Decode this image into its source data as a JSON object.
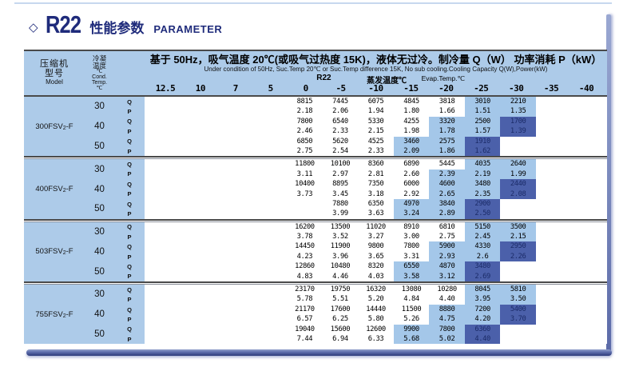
{
  "title": {
    "diamond": "◇",
    "refrigerant": "R22",
    "cn": "性能参数",
    "en": "PARAMETER"
  },
  "colors": {
    "light_blue": "#adcbe9",
    "highlight_light": "#a4c7e9",
    "highlight_dark": "#4b60aa",
    "title_navy": "#1f2b7b",
    "line": "#4a4a4a"
  },
  "table": {
    "header": {
      "model_cn1": "压缩机",
      "model_cn2": "型号",
      "model_en": "Model",
      "cond_cn1": "冷凝",
      "cond_cn2": "温度",
      "cond_unit": "℃",
      "cond_en1": "Cond.",
      "cond_en2": "Temp.",
      "cond_unit2": "℃",
      "condition_cn": "基于 50Hz，吸气温度 20℃(或吸气过热度 15K)，液体无过冷。制冷量 Q（W） 功率消耗 P（kW）",
      "condition_en": "Under condition of 50Hz, Suc.Temp 20℃ or Suc.Temp difference 15K, No sub cooling.Cooling Capacity Q(W),Power(kW)",
      "refrigerant": "R22",
      "evap_cn": "蒸发温度℃",
      "evap_en": "Evap.Temp.℃",
      "columns": [
        "12.5",
        "10",
        "7",
        "5",
        "0",
        "-5",
        "-10",
        "-15",
        "-20",
        "-25",
        "-30",
        "-35",
        "-40"
      ]
    },
    "blocks": [
      {
        "model": {
          "name": "300FSV2-F",
          "pre": "300FSV",
          "sub": "2",
          "post": "-F"
        },
        "groups": [
          {
            "temp": "30",
            "rows": [
              {
                "qp": "Q",
                "values": [
                  "",
                  "",
                  "",
                  "",
                  "8815",
                  "7445",
                  "6075",
                  "4845",
                  "3818",
                  "3010",
                  "2210",
                  "",
                  ""
                ],
                "bg": "---------ll--"
              },
              {
                "qp": "P",
                "values": [
                  "",
                  "",
                  "",
                  "",
                  "2.18",
                  "2.06",
                  "1.94",
                  "1.80",
                  "1.66",
                  "1.51",
                  "1.35",
                  "",
                  ""
                ],
                "bg": "---------ll--"
              }
            ]
          },
          {
            "temp": "40",
            "rows": [
              {
                "qp": "Q",
                "values": [
                  "",
                  "",
                  "",
                  "",
                  "7800",
                  "6540",
                  "5330",
                  "4255",
                  "3320",
                  "2500",
                  "1700",
                  "",
                  ""
                ],
                "bg": "--------lld--"
              },
              {
                "qp": "P",
                "values": [
                  "",
                  "",
                  "",
                  "",
                  "2.46",
                  "2.33",
                  "2.15",
                  "1.98",
                  "1.78",
                  "1.57",
                  "1.39",
                  "",
                  ""
                ],
                "bg": "--------lld--"
              }
            ]
          },
          {
            "temp": "50",
            "rows": [
              {
                "qp": "Q",
                "values": [
                  "",
                  "",
                  "",
                  "",
                  "6850",
                  "5620",
                  "4525",
                  "3460",
                  "2575",
                  "1910",
                  "",
                  "",
                  ""
                ],
                "bg": "-------lld---"
              },
              {
                "qp": "P",
                "values": [
                  "",
                  "",
                  "",
                  "",
                  "2.75",
                  "2.54",
                  "2.33",
                  "2.09",
                  "1.86",
                  "1.62",
                  "",
                  "",
                  ""
                ],
                "bg": "-------lld---"
              }
            ]
          }
        ]
      },
      {
        "model": {
          "name": "400FSV2-F",
          "pre": "400FSV",
          "sub": "2",
          "post": "-F"
        },
        "groups": [
          {
            "temp": "30",
            "rows": [
              {
                "qp": "Q",
                "values": [
                  "",
                  "",
                  "",
                  "",
                  "11800",
                  "10100",
                  "8360",
                  "6890",
                  "5445",
                  "4035",
                  "2640",
                  "",
                  ""
                ],
                "bg": "---------ll--"
              },
              {
                "qp": "P",
                "values": [
                  "",
                  "",
                  "",
                  "",
                  "3.11",
                  "2.97",
                  "2.81",
                  "2.60",
                  "2.39",
                  "2.19",
                  "1.99",
                  "",
                  ""
                ],
                "bg": "--------lll--"
              }
            ]
          },
          {
            "temp": "40",
            "rows": [
              {
                "qp": "Q",
                "values": [
                  "",
                  "",
                  "",
                  "",
                  "10400",
                  "8895",
                  "7350",
                  "6000",
                  "4600",
                  "3480",
                  "2440",
                  "",
                  ""
                ],
                "bg": "--------lld--"
              },
              {
                "qp": "P",
                "values": [
                  "",
                  "",
                  "",
                  "",
                  "3.73",
                  "3.45",
                  "3.18",
                  "2.92",
                  "2.65",
                  "2.35",
                  "2.08",
                  "",
                  ""
                ],
                "bg": "--------lld--"
              }
            ]
          },
          {
            "temp": "50",
            "rows": [
              {
                "qp": "Q",
                "values": [
                  "",
                  "",
                  "",
                  "",
                  "",
                  "7880",
                  "6350",
                  "4970",
                  "3840",
                  "2900",
                  "",
                  "",
                  ""
                ],
                "bg": "-------lld---"
              },
              {
                "qp": "P",
                "values": [
                  "",
                  "",
                  "",
                  "",
                  "",
                  "3.99",
                  "3.63",
                  "3.24",
                  "2.89",
                  "2.50",
                  "",
                  "",
                  ""
                ],
                "bg": "-------lld---"
              }
            ]
          }
        ]
      },
      {
        "model": {
          "name": "503FSV2-F",
          "pre": "503FSV",
          "sub": "2",
          "post": "-F"
        },
        "groups": [
          {
            "temp": "30",
            "rows": [
              {
                "qp": "Q",
                "values": [
                  "",
                  "",
                  "",
                  "",
                  "16200",
                  "13500",
                  "11020",
                  "8910",
                  "6810",
                  "5150",
                  "3500",
                  "",
                  ""
                ],
                "bg": "---------ll--"
              },
              {
                "qp": "P",
                "values": [
                  "",
                  "",
                  "",
                  "",
                  "3.78",
                  "3.52",
                  "3.27",
                  "3.00",
                  "2.75",
                  "2.45",
                  "2.15",
                  "",
                  ""
                ],
                "bg": "---------ll--"
              }
            ]
          },
          {
            "temp": "40",
            "rows": [
              {
                "qp": "Q",
                "values": [
                  "",
                  "",
                  "",
                  "",
                  "14450",
                  "11900",
                  "9800",
                  "7800",
                  "5900",
                  "4330",
                  "2950",
                  "",
                  ""
                ],
                "bg": "--------lld--"
              },
              {
                "qp": "P",
                "values": [
                  "",
                  "",
                  "",
                  "",
                  "4.23",
                  "3.96",
                  "3.65",
                  "3.31",
                  "2.93",
                  "2.6",
                  "2.26",
                  "",
                  ""
                ],
                "bg": "--------lld--"
              }
            ]
          },
          {
            "temp": "50",
            "rows": [
              {
                "qp": "Q",
                "values": [
                  "",
                  "",
                  "",
                  "",
                  "12860",
                  "10480",
                  "8320",
                  "6550",
                  "4870",
                  "3480",
                  "",
                  "",
                  ""
                ],
                "bg": "-------lld---"
              },
              {
                "qp": "P",
                "values": [
                  "",
                  "",
                  "",
                  "",
                  "4.83",
                  "4.46",
                  "4.03",
                  "3.58",
                  "3.12",
                  "2.69",
                  "",
                  "",
                  ""
                ],
                "bg": "-------lld---"
              }
            ]
          }
        ]
      },
      {
        "model": {
          "name": "755FSV2-F",
          "pre": "755FSV",
          "sub": "2",
          "post": "-F"
        },
        "groups": [
          {
            "temp": "30",
            "rows": [
              {
                "qp": "Q",
                "values": [
                  "",
                  "",
                  "",
                  "",
                  "23170",
                  "19750",
                  "16320",
                  "13080",
                  "10280",
                  "8045",
                  "5810",
                  "",
                  ""
                ],
                "bg": "---------ll--"
              },
              {
                "qp": "P",
                "values": [
                  "",
                  "",
                  "",
                  "",
                  "5.78",
                  "5.51",
                  "5.20",
                  "4.84",
                  "4.40",
                  "3.95",
                  "3.50",
                  "",
                  ""
                ],
                "bg": "---------ll--"
              }
            ]
          },
          {
            "temp": "40",
            "rows": [
              {
                "qp": "Q",
                "values": [
                  "",
                  "",
                  "",
                  "",
                  "21170",
                  "17600",
                  "14440",
                  "11500",
                  "8880",
                  "7200",
                  "5400",
                  "",
                  ""
                ],
                "bg": "--------lld--"
              },
              {
                "qp": "P",
                "values": [
                  "",
                  "",
                  "",
                  "",
                  "6.57",
                  "6.25",
                  "5.80",
                  "5.26",
                  "4.75",
                  "4.20",
                  "3.70",
                  "",
                  ""
                ],
                "bg": "--------lld--"
              }
            ]
          },
          {
            "temp": "50",
            "rows": [
              {
                "qp": "Q",
                "values": [
                  "",
                  "",
                  "",
                  "",
                  "19040",
                  "15600",
                  "12600",
                  "9900",
                  "7800",
                  "6360",
                  "",
                  "",
                  ""
                ],
                "bg": "-------lld---"
              },
              {
                "qp": "P",
                "values": [
                  "",
                  "",
                  "",
                  "",
                  "7.44",
                  "6.94",
                  "6.33",
                  "5.68",
                  "5.02",
                  "4.40",
                  "",
                  "",
                  ""
                ],
                "bg": "-------lld---"
              }
            ]
          }
        ]
      }
    ]
  }
}
